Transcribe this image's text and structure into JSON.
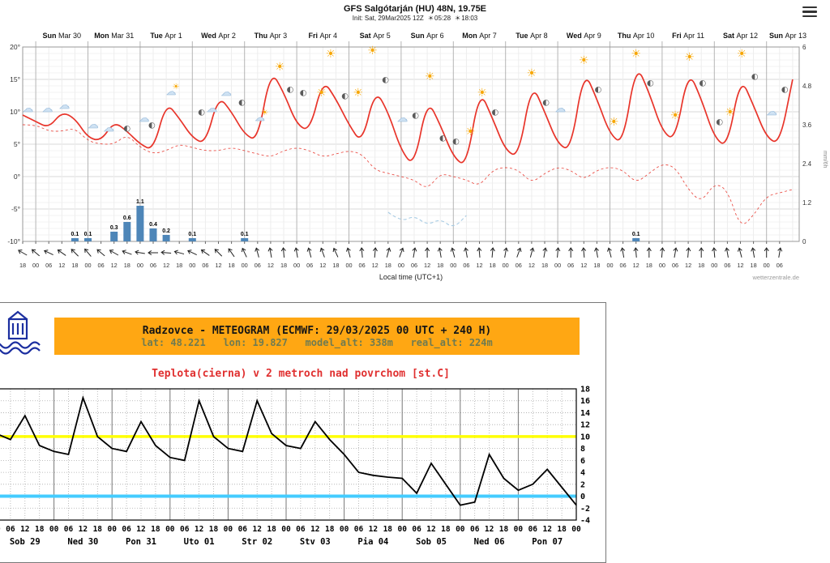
{
  "chart_data": [
    {
      "type": "line",
      "source": "wetterzentrale",
      "title": "GFS Salgótarján (HU) 48N, 19.75E",
      "subtitle": "Init: Sat, 29Mar2025 12Z",
      "sunrise": "05:28",
      "sunset": "18:03",
      "xlabel": "Local time (UTC+1)",
      "watermark": "wetterzentrale.de",
      "right_axis_label": "mm/6h",
      "ylim_temp": [
        -10,
        20
      ],
      "y_ticks_temp": [
        "20°",
        "15°",
        "10°",
        "5°",
        "0°",
        "-5°",
        "-10°"
      ],
      "ylim_precip": [
        0,
        6
      ],
      "y_ticks_precip": [
        "6",
        "4.8",
        "3.6",
        "2.4",
        "1.2",
        "0"
      ],
      "x_step_hours": 6,
      "x_first_hour": 18,
      "days": [
        {
          "dow": "Sun",
          "date": "Mar 30"
        },
        {
          "dow": "Mon",
          "date": "Mar 31"
        },
        {
          "dow": "Tue",
          "date": "Apr 1"
        },
        {
          "dow": "Wed",
          "date": "Apr 2"
        },
        {
          "dow": "Thu",
          "date": "Apr 3"
        },
        {
          "dow": "Fri",
          "date": "Apr 4"
        },
        {
          "dow": "Sat",
          "date": "Apr 5"
        },
        {
          "dow": "Sun",
          "date": "Apr 6"
        },
        {
          "dow": "Mon",
          "date": "Apr 7"
        },
        {
          "dow": "Tue",
          "date": "Apr 8"
        },
        {
          "dow": "Wed",
          "date": "Apr 9"
        },
        {
          "dow": "Thu",
          "date": "Apr 10"
        },
        {
          "dow": "Fri",
          "date": "Apr 11"
        },
        {
          "dow": "Sat",
          "date": "Apr 12"
        },
        {
          "dow": "Sun",
          "date": "Apr 13"
        }
      ],
      "series": [
        {
          "name": "temperature_2m",
          "color": "#e8342a",
          "style": "solid",
          "values": [
            9.5,
            8.5,
            7.5,
            10,
            9,
            6,
            5.5,
            8.5,
            7,
            5,
            4,
            11.5,
            9,
            6,
            5,
            12.5,
            10,
            6.5,
            5.5,
            16.5,
            13,
            8,
            7,
            15,
            12,
            8,
            5,
            13.5,
            10,
            4,
            1.5,
            12,
            8,
            3,
            1.5,
            13.5,
            9,
            4,
            3,
            14.5,
            10,
            5,
            4,
            16.5,
            12,
            6.5,
            5,
            17.5,
            13,
            7,
            5.5,
            16.5,
            12,
            6,
            4.5,
            15.5,
            11,
            6,
            5,
            15
          ]
        },
        {
          "name": "dew_point",
          "color": "#e8342a",
          "style": "dashed",
          "values": [
            8,
            8,
            7,
            7,
            7.5,
            5.5,
            5,
            5,
            6.5,
            4.5,
            3.5,
            4,
            5,
            4.5,
            4,
            4,
            4.5,
            4,
            3.5,
            3,
            4,
            4.5,
            4,
            3,
            3.5,
            4,
            3.5,
            1,
            0.5,
            0,
            -0.5,
            -2,
            0.5,
            0,
            -0.5,
            -1.5,
            1,
            1.5,
            1,
            -1,
            0.5,
            1.5,
            1,
            -0.5,
            1,
            1.5,
            1,
            -1,
            0.5,
            2,
            1.5,
            -2,
            -4,
            -1,
            -2,
            -8,
            -6,
            -3,
            -2.5,
            -2
          ]
        },
        {
          "name": "aux_line",
          "color": "#a8cce4",
          "style": "dashed",
          "t_start": 28,
          "values": [
            -5.5,
            -7,
            -6,
            -7.5,
            -6.5,
            -8,
            -6
          ]
        }
      ],
      "precip_color": "#4e86b8",
      "precip_bars": [
        {
          "t": 4,
          "mm": 0.1
        },
        {
          "t": 5,
          "mm": 0.1
        },
        {
          "t": 7,
          "mm": 0.3
        },
        {
          "t": 8,
          "mm": 0.6
        },
        {
          "t": 9,
          "mm": 1.1
        },
        {
          "t": 10,
          "mm": 0.4
        },
        {
          "t": 11,
          "mm": 0.2
        },
        {
          "t": 13,
          "mm": 0.1
        },
        {
          "t": 17,
          "mm": 0.1
        },
        {
          "t": 47,
          "mm": 0.1
        }
      ],
      "icon_glyphs": {
        "sun": "☀",
        "cloud": "☁",
        "moon": "◐"
      },
      "icon_colors": {
        "sun": "#f7a600",
        "cloud": "#cfe2f3",
        "cloud_stroke": "#8fb4d6",
        "moon": "#5a5a5a"
      },
      "icons": [
        {
          "t": 0.4,
          "v": 10.5,
          "k": "cloud"
        },
        {
          "t": 1.9,
          "v": 10.5,
          "k": "cloud"
        },
        {
          "t": 3.2,
          "v": 11,
          "k": "cloud"
        },
        {
          "t": 5.4,
          "v": 8,
          "k": "cloud"
        },
        {
          "t": 6.6,
          "v": 7.5,
          "k": "cloud"
        },
        {
          "t": 8.0,
          "v": 7.5,
          "k": "moon"
        },
        {
          "t": 9.3,
          "v": 9,
          "k": "cloud"
        },
        {
          "t": 9.9,
          "v": 8,
          "k": "moon"
        },
        {
          "t": 11.5,
          "v": 13.5,
          "k": "suncloud"
        },
        {
          "t": 13.7,
          "v": 10,
          "k": "moon"
        },
        {
          "t": 14.5,
          "v": 10.5,
          "k": "cloud"
        },
        {
          "t": 15.6,
          "v": 13,
          "k": "cloud"
        },
        {
          "t": 16.8,
          "v": 11.5,
          "k": "moon"
        },
        {
          "t": 18.3,
          "v": 9.5,
          "k": "suncloud"
        },
        {
          "t": 19.7,
          "v": 17,
          "k": "sun"
        },
        {
          "t": 20.5,
          "v": 13.5,
          "k": "moon"
        },
        {
          "t": 21.5,
          "v": 13,
          "k": "moon"
        },
        {
          "t": 22.9,
          "v": 13,
          "k": "sun"
        },
        {
          "t": 23.6,
          "v": 19,
          "k": "sun"
        },
        {
          "t": 24.7,
          "v": 12.5,
          "k": "moon"
        },
        {
          "t": 25.7,
          "v": 13,
          "k": "sun"
        },
        {
          "t": 26.8,
          "v": 19.5,
          "k": "sun"
        },
        {
          "t": 27.8,
          "v": 15,
          "k": "moon"
        },
        {
          "t": 29.1,
          "v": 9,
          "k": "cloud"
        },
        {
          "t": 30.1,
          "v": 9.5,
          "k": "moon"
        },
        {
          "t": 31.2,
          "v": 15.5,
          "k": "sun"
        },
        {
          "t": 32.2,
          "v": 6,
          "k": "moon"
        },
        {
          "t": 33.2,
          "v": 5.5,
          "k": "moon"
        },
        {
          "t": 34.3,
          "v": 7,
          "k": "sun"
        },
        {
          "t": 35.2,
          "v": 13,
          "k": "sun"
        },
        {
          "t": 36.2,
          "v": 10,
          "k": "moon"
        },
        {
          "t": 39.0,
          "v": 16,
          "k": "sun"
        },
        {
          "t": 40.1,
          "v": 11.5,
          "k": "moon"
        },
        {
          "t": 41.2,
          "v": 10.5,
          "k": "cloud"
        },
        {
          "t": 43.0,
          "v": 18,
          "k": "sun"
        },
        {
          "t": 44.1,
          "v": 13.5,
          "k": "moon"
        },
        {
          "t": 45.3,
          "v": 8.5,
          "k": "sun"
        },
        {
          "t": 47.0,
          "v": 19,
          "k": "sun"
        },
        {
          "t": 48.1,
          "v": 14.5,
          "k": "moon"
        },
        {
          "t": 50.0,
          "v": 9.5,
          "k": "sun"
        },
        {
          "t": 51.1,
          "v": 18.5,
          "k": "sun"
        },
        {
          "t": 52.1,
          "v": 14.5,
          "k": "moon"
        },
        {
          "t": 53.4,
          "v": 8.5,
          "k": "moon"
        },
        {
          "t": 54.2,
          "v": 10,
          "k": "sun"
        },
        {
          "t": 55.1,
          "v": 19,
          "k": "sun"
        },
        {
          "t": 56.1,
          "v": 15.5,
          "k": "moon"
        },
        {
          "t": 57.4,
          "v": 10,
          "k": "cloud"
        },
        {
          "t": 58.4,
          "v": 13.5,
          "k": "moon"
        }
      ],
      "wind_angles": [
        300,
        310,
        295,
        305,
        315,
        320,
        310,
        300,
        290,
        280,
        270,
        275,
        285,
        295,
        305,
        315,
        325,
        335,
        345,
        350,
        355,
        350,
        345,
        340,
        335,
        345,
        355,
        5,
        15,
        20,
        10,
        0,
        350,
        345,
        350,
        355,
        5,
        10,
        20,
        15,
        10,
        5,
        0,
        355,
        350,
        345,
        350,
        355,
        0,
        5,
        10,
        5,
        0,
        355,
        350,
        345,
        350,
        0,
        10
      ]
    },
    {
      "type": "line",
      "source": "SHMU",
      "panel_title": "Radzovce - METEOGRAM (ECMWF: 29/03/2025 00 UTC + 240 H)",
      "panel_subtitle": "lat: 48.221   lon: 19.827   model_alt: 338m   real_alt: 224m",
      "chart_title": "Teplota(cierna) v 2 metroch nad povrchom [st.C]",
      "ylim": [
        -4,
        18
      ],
      "y_ticks": [
        18,
        16,
        14,
        12,
        10,
        8,
        6,
        4,
        2,
        0,
        -2,
        -4
      ],
      "x_tick_labels_cycle": [
        "00",
        "06",
        "12",
        "18"
      ],
      "days": [
        "Sob 29",
        "Ned 30",
        "Pon 31",
        "Uto 01",
        "Str 02",
        "Stv 03",
        "Pia 04",
        "Sob 05",
        "Ned 06",
        "Pon 07"
      ],
      "reference_lines": [
        {
          "value": 10,
          "color": "#ffff00",
          "width": 3.5
        },
        {
          "value": 0,
          "color": "#44ccff",
          "width": 4
        }
      ],
      "series": [
        {
          "name": "temperature_2m",
          "color": "#000000",
          "values": [
            10.5,
            9.5,
            13.5,
            8.5,
            7.5,
            7,
            16.5,
            10,
            8,
            7.5,
            12.5,
            8.5,
            6.5,
            6,
            16,
            10,
            8,
            7.5,
            16,
            10.5,
            8.5,
            8,
            12.5,
            9.5,
            7,
            4,
            3.5,
            3.2,
            3,
            0.5,
            5.5,
            2,
            -1.5,
            -1,
            7,
            3,
            1,
            2,
            4.5,
            1.5,
            -1.5
          ]
        }
      ]
    }
  ]
}
